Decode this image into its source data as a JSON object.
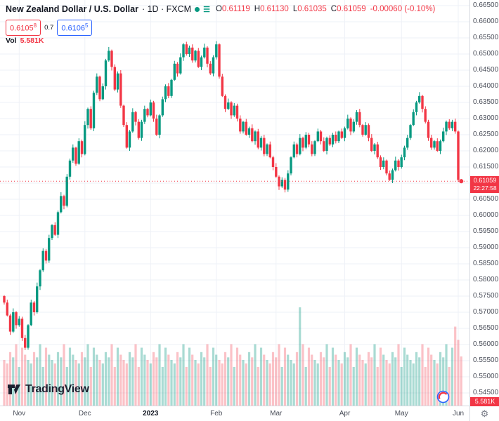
{
  "header": {
    "title": "New Zealand Dollar / U.S. Dollar",
    "meta": "· 1D · FXCM",
    "ohlc": [
      {
        "label": "O",
        "value": "0.61119"
      },
      {
        "label": "H",
        "value": "0.61130"
      },
      {
        "label": "L",
        "value": "0.61035"
      },
      {
        "label": "C",
        "value": "0.61059"
      }
    ],
    "change": "-0.00060 (-0.10%)",
    "sell_price": "0.6105",
    "sell_sup": "8",
    "spread": "0.7",
    "buy_price": "0.6106",
    "buy_sup": "5",
    "vol_label": "Vol",
    "vol_value": "5.581K"
  },
  "axis": {
    "price_label": "0.61059",
    "countdown": "22:27:58",
    "vol_badge": "5.581K"
  },
  "watermark": "TradingView",
  "icons": {
    "gear": "⚙",
    "list": "☰"
  },
  "chart_data": {
    "type": "candlestick+volume",
    "symbol": "NZDUSD",
    "interval": "1D",
    "exchange": "FXCM",
    "note": "candles are [open,high,low,close,volume]; prices ×1e-5 (61059 = 0.61059); volume ×100 units (56 = 5.6K)",
    "ylim": [
      0.545,
      0.665
    ],
    "grid": true,
    "y_ticks": [
      "0.66500",
      "0.66000",
      "0.65500",
      "0.65000",
      "0.64500",
      "0.64000",
      "0.63500",
      "0.63000",
      "0.62500",
      "0.62000",
      "0.61500",
      "0.61000",
      "0.60500",
      "0.60000",
      "0.59500",
      "0.59000",
      "0.58500",
      "0.58000",
      "0.57500",
      "0.57000",
      "0.56500",
      "0.56000",
      "0.55500",
      "0.55000",
      "0.54500"
    ],
    "months": [
      {
        "label": "Nov",
        "idx": 5
      },
      {
        "label": "Dec",
        "idx": 27
      },
      {
        "label": "2023",
        "idx": 49
      },
      {
        "label": "Feb",
        "idx": 71
      },
      {
        "label": "Mar",
        "idx": 91
      },
      {
        "label": "Apr",
        "idx": 114
      },
      {
        "label": "May",
        "idx": 133
      },
      {
        "label": "Jun",
        "idx": 152
      }
    ],
    "last_price": 61059,
    "colors": {
      "up": "#089981",
      "down": "#f23645",
      "vol_up": "rgba(8,153,129,0.35)",
      "vol_down": "rgba(242,54,69,0.3)",
      "line": "#f23645",
      "grid": "#eef1f7"
    },
    "candles": [
      [
        57500,
        57530,
        57240,
        57300,
        52
      ],
      [
        57300,
        57390,
        56870,
        56900,
        48
      ],
      [
        56900,
        56950,
        56300,
        56400,
        61
      ],
      [
        56400,
        57120,
        56360,
        57000,
        55
      ],
      [
        57000,
        57040,
        56490,
        56600,
        70
      ],
      [
        56600,
        56880,
        56550,
        56800,
        44
      ],
      [
        56800,
        56860,
        56110,
        56200,
        66
      ],
      [
        56200,
        56300,
        55830,
        55900,
        58
      ],
      [
        55900,
        56630,
        55840,
        56600,
        52
      ],
      [
        56600,
        57390,
        56570,
        57300,
        48
      ],
      [
        57300,
        57350,
        56900,
        57000,
        61
      ],
      [
        57000,
        57920,
        56960,
        57800,
        55
      ],
      [
        57800,
        58340,
        57690,
        58300,
        70
      ],
      [
        58300,
        58980,
        58250,
        58900,
        44
      ],
      [
        58900,
        58960,
        58510,
        58600,
        66
      ],
      [
        58600,
        59400,
        58530,
        59300,
        58
      ],
      [
        59300,
        59730,
        59240,
        59700,
        52
      ],
      [
        59700,
        59790,
        59370,
        59400,
        48
      ],
      [
        59400,
        60150,
        59300,
        60100,
        61
      ],
      [
        60100,
        60720,
        60060,
        60600,
        55
      ],
      [
        60600,
        60640,
        60190,
        60300,
        70
      ],
      [
        60300,
        61280,
        60250,
        61200,
        44
      ],
      [
        61200,
        61760,
        61110,
        61700,
        66
      ],
      [
        61700,
        62200,
        61630,
        62100,
        58
      ],
      [
        62100,
        62130,
        61540,
        61600,
        52
      ],
      [
        61600,
        62390,
        61570,
        62300,
        48
      ],
      [
        62300,
        62350,
        61800,
        61900,
        61
      ],
      [
        61900,
        62920,
        61860,
        62800,
        55
      ],
      [
        62800,
        63340,
        62690,
        63300,
        70
      ],
      [
        63300,
        63380,
        62650,
        62700,
        44
      ],
      [
        62700,
        63860,
        62610,
        63800,
        66
      ],
      [
        63800,
        64400,
        63730,
        64300,
        58
      ],
      [
        64300,
        64330,
        63540,
        63600,
        52
      ],
      [
        63600,
        64090,
        63570,
        64000,
        48
      ],
      [
        64000,
        64850,
        63900,
        64800,
        61
      ],
      [
        64800,
        65220,
        64760,
        65100,
        55
      ],
      [
        65100,
        65140,
        64490,
        64600,
        70
      ],
      [
        64600,
        64680,
        63850,
        63900,
        44
      ],
      [
        63900,
        64460,
        63810,
        64400,
        66
      ],
      [
        64400,
        64500,
        63330,
        63400,
        58
      ],
      [
        63400,
        63430,
        62740,
        62800,
        52
      ],
      [
        62800,
        62890,
        62070,
        62100,
        48
      ],
      [
        62100,
        62650,
        62000,
        62600,
        61
      ],
      [
        62600,
        63320,
        62560,
        63200,
        55
      ],
      [
        63200,
        63240,
        62790,
        62900,
        70
      ],
      [
        62900,
        62980,
        62350,
        62400,
        44
      ],
      [
        62400,
        62960,
        62310,
        62900,
        66
      ],
      [
        62900,
        63400,
        62830,
        63300,
        58
      ],
      [
        63300,
        63330,
        63040,
        63100,
        52
      ],
      [
        63100,
        63590,
        63070,
        63500,
        48
      ],
      [
        63500,
        63550,
        62900,
        63000,
        61
      ],
      [
        63000,
        63120,
        62460,
        62500,
        55
      ],
      [
        62500,
        63140,
        62390,
        63100,
        70
      ],
      [
        63100,
        63680,
        63050,
        63600,
        44
      ],
      [
        63600,
        64060,
        63510,
        64000,
        66
      ],
      [
        64000,
        64100,
        63630,
        63700,
        58
      ],
      [
        63700,
        64230,
        63640,
        64200,
        52
      ],
      [
        64200,
        64790,
        64170,
        64700,
        48
      ],
      [
        64700,
        64750,
        64300,
        64400,
        61
      ],
      [
        64400,
        65020,
        64360,
        64900,
        55
      ],
      [
        64900,
        65340,
        64790,
        65300,
        70
      ],
      [
        65300,
        65380,
        64950,
        65000,
        44
      ],
      [
        65000,
        65260,
        64910,
        65200,
        66
      ],
      [
        65200,
        65300,
        64730,
        64800,
        58
      ],
      [
        64800,
        65130,
        64740,
        65100,
        52
      ],
      [
        65100,
        65190,
        64570,
        64600,
        48
      ],
      [
        64600,
        64950,
        64500,
        64900,
        61
      ],
      [
        64900,
        65320,
        64860,
        65200,
        55
      ],
      [
        65200,
        65240,
        64590,
        64700,
        70
      ],
      [
        64700,
        64780,
        64350,
        64400,
        44
      ],
      [
        64400,
        64960,
        64310,
        64900,
        66
      ],
      [
        64900,
        65400,
        64830,
        65300,
        58
      ],
      [
        65300,
        65330,
        64240,
        64300,
        52
      ],
      [
        64300,
        64390,
        63670,
        63700,
        48
      ],
      [
        63700,
        63750,
        63200,
        63300,
        61
      ],
      [
        63300,
        63620,
        63260,
        63500,
        55
      ],
      [
        63500,
        63540,
        62990,
        63100,
        70
      ],
      [
        63100,
        63480,
        63050,
        63400,
        44
      ],
      [
        63400,
        63460,
        62910,
        63000,
        66
      ],
      [
        63000,
        63100,
        62530,
        62600,
        58
      ],
      [
        62600,
        62930,
        62540,
        62900,
        52
      ],
      [
        62900,
        62990,
        62470,
        62500,
        48
      ],
      [
        62500,
        62750,
        62400,
        62700,
        61
      ],
      [
        62700,
        62820,
        62260,
        62300,
        55
      ],
      [
        62300,
        62640,
        62190,
        62600,
        70
      ],
      [
        62600,
        62680,
        62050,
        62100,
        44
      ],
      [
        62100,
        62460,
        62010,
        62400,
        66
      ],
      [
        62400,
        62500,
        61830,
        61900,
        58
      ],
      [
        61900,
        62230,
        61840,
        62200,
        52
      ],
      [
        62200,
        62290,
        61770,
        61800,
        48
      ],
      [
        61800,
        61850,
        61400,
        61500,
        61
      ],
      [
        61500,
        61620,
        61160,
        61200,
        55
      ],
      [
        61200,
        61240,
        60790,
        60900,
        70
      ],
      [
        60900,
        61180,
        60850,
        61100,
        44
      ],
      [
        61100,
        61160,
        60710,
        60800,
        66
      ],
      [
        60800,
        61400,
        60730,
        61300,
        58
      ],
      [
        61300,
        61830,
        61240,
        61800,
        52
      ],
      [
        61800,
        62290,
        61770,
        62200,
        48
      ],
      [
        62200,
        62250,
        61800,
        61900,
        61
      ],
      [
        61900,
        62520,
        61860,
        62400,
        112
      ],
      [
        62400,
        62440,
        61990,
        62100,
        70
      ],
      [
        62100,
        62580,
        62050,
        62500,
        44
      ],
      [
        62500,
        62560,
        62110,
        62200,
        66
      ],
      [
        62200,
        62300,
        61830,
        61900,
        58
      ],
      [
        61900,
        62330,
        61840,
        62300,
        52
      ],
      [
        62300,
        62690,
        62270,
        62600,
        48
      ],
      [
        62600,
        62650,
        62200,
        62300,
        61
      ],
      [
        62300,
        62420,
        61960,
        62000,
        55
      ],
      [
        62000,
        62440,
        61890,
        62400,
        70
      ],
      [
        62400,
        62480,
        62150,
        62200,
        44
      ],
      [
        62200,
        62560,
        62110,
        62500,
        66
      ],
      [
        62500,
        62600,
        62230,
        62300,
        58
      ],
      [
        62300,
        62630,
        62240,
        62600,
        52
      ],
      [
        62600,
        62690,
        62370,
        62400,
        48
      ],
      [
        62400,
        62750,
        62300,
        62700,
        61
      ],
      [
        62700,
        63120,
        62660,
        63000,
        55
      ],
      [
        63000,
        63040,
        62490,
        62600,
        70
      ],
      [
        62600,
        62980,
        62550,
        62900,
        44
      ],
      [
        62900,
        63260,
        62810,
        63200,
        66
      ],
      [
        63200,
        63300,
        62730,
        62800,
        58
      ],
      [
        62800,
        62830,
        62440,
        62500,
        52
      ],
      [
        62500,
        62890,
        62470,
        62800,
        48
      ],
      [
        62800,
        62850,
        62300,
        62400,
        61
      ],
      [
        62400,
        62520,
        61960,
        62000,
        55
      ],
      [
        62000,
        62240,
        61890,
        62200,
        70
      ],
      [
        62200,
        62280,
        61750,
        61800,
        44
      ],
      [
        61800,
        61860,
        61410,
        61500,
        66
      ],
      [
        61500,
        61800,
        61430,
        61700,
        58
      ],
      [
        61700,
        61730,
        61240,
        61300,
        52
      ],
      [
        61300,
        61390,
        61070,
        61100,
        48
      ],
      [
        61100,
        61450,
        61000,
        61400,
        61
      ],
      [
        61400,
        61820,
        61360,
        61700,
        55
      ],
      [
        61700,
        61740,
        61390,
        61500,
        70
      ],
      [
        61500,
        61880,
        61450,
        61800,
        44
      ],
      [
        61800,
        62160,
        61710,
        62100,
        66
      ],
      [
        62100,
        62500,
        62030,
        62400,
        58
      ],
      [
        62400,
        62830,
        62340,
        62800,
        52
      ],
      [
        62800,
        63290,
        62770,
        63200,
        48
      ],
      [
        63200,
        63550,
        63100,
        63500,
        61
      ],
      [
        63500,
        63820,
        63460,
        63700,
        55
      ],
      [
        63700,
        63740,
        63190,
        63300,
        70
      ],
      [
        63300,
        63380,
        62850,
        62900,
        44
      ],
      [
        62900,
        62960,
        62310,
        62400,
        66
      ],
      [
        62400,
        62500,
        62030,
        62100,
        58
      ],
      [
        62100,
        62330,
        62040,
        62300,
        52
      ],
      [
        62300,
        62390,
        61970,
        62000,
        48
      ],
      [
        62000,
        62350,
        61900,
        62300,
        61
      ],
      [
        62300,
        62720,
        62260,
        62600,
        55
      ],
      [
        62600,
        62940,
        62490,
        62900,
        70
      ],
      [
        62900,
        62980,
        62650,
        62700,
        44
      ],
      [
        62700,
        62960,
        62610,
        62900,
        66
      ],
      [
        62900,
        63000,
        62530,
        62600,
        90
      ],
      [
        62600,
        62630,
        61040,
        61100,
        75
      ],
      [
        61119,
        61130,
        61035,
        61059,
        56
      ]
    ]
  }
}
